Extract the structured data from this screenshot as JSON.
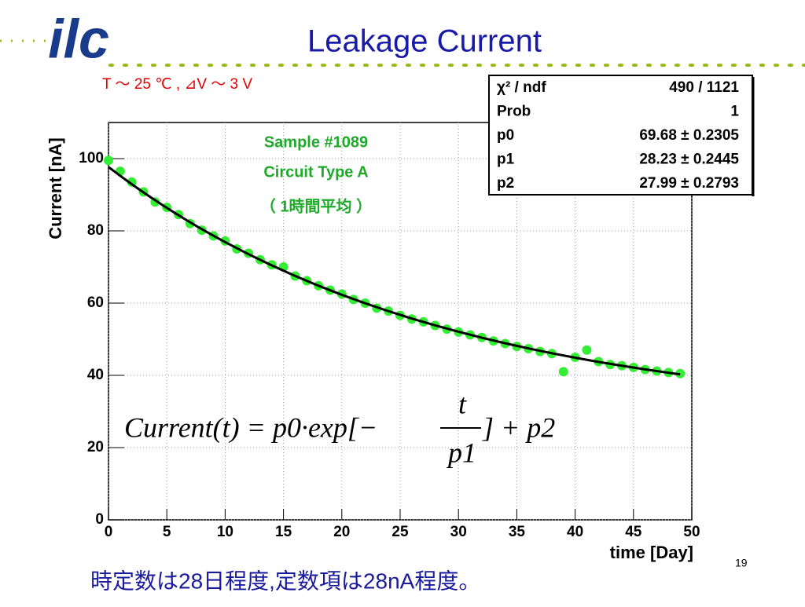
{
  "logo": "ilc",
  "title": "Leakage Current",
  "condition": "T ～ 25 ℃ , ⊿V ～ 3 V",
  "footer": "時定数は28日程度,定数項は28nA程度。",
  "page_number": "19",
  "chart_data": {
    "type": "scatter",
    "xlabel": "time [Day]",
    "ylabel": "Current [nA]",
    "xlim": [
      0,
      50
    ],
    "ylim": [
      0,
      110
    ],
    "xticks": [
      0,
      5,
      10,
      15,
      20,
      25,
      30,
      35,
      40,
      45,
      50
    ],
    "yticks": [
      0,
      20,
      40,
      60,
      80,
      100
    ],
    "grid": true,
    "annotations": [
      "Sample #1089",
      "Circuit Type A",
      "（ 1時間平均 ）"
    ],
    "formula": {
      "left": "Current(t) = p0·exp[−",
      "numerator": "t",
      "denominator": "p1",
      "right": "] + p2"
    },
    "stats": [
      [
        "χ² / ndf",
        "490 / 1121"
      ],
      [
        "Prob",
        "1"
      ],
      [
        "p0",
        "69.68 ± 0.2305"
      ],
      [
        "p1",
        "28.23 ± 0.2445"
      ],
      [
        "p2",
        "27.99 ± 0.2793"
      ]
    ],
    "series": [
      {
        "mode": "markers",
        "color": "#33ee33",
        "x": [
          0,
          1,
          2,
          3,
          4,
          5,
          6,
          7,
          8,
          9,
          10,
          11,
          12,
          13,
          14,
          15,
          16,
          17,
          18,
          19,
          20,
          21,
          22,
          23,
          24,
          25,
          26,
          27,
          28,
          29,
          30,
          31,
          32,
          33,
          34,
          35,
          36,
          37,
          38,
          39,
          40,
          41,
          42,
          43,
          44,
          45,
          46,
          47,
          48,
          49
        ],
        "values": [
          99.5,
          96.5,
          93.5,
          90.8,
          88.0,
          86.5,
          84.5,
          82.0,
          80.2,
          78.6,
          77.2,
          75.0,
          73.8,
          72.0,
          70.6,
          70.0,
          67.5,
          66.2,
          64.8,
          63.6,
          62.5,
          61.0,
          60.0,
          58.6,
          57.8,
          56.6,
          55.6,
          54.8,
          53.8,
          52.8,
          52.0,
          51.2,
          50.5,
          49.5,
          48.8,
          48.0,
          47.4,
          46.6,
          46.0,
          41.0,
          45.0,
          47.0,
          43.8,
          43.0,
          42.7,
          42.2,
          41.6,
          41.2,
          40.8,
          40.5
        ]
      },
      {
        "mode": "line",
        "color": "#000000",
        "x": [
          0,
          1,
          2,
          3,
          4,
          5,
          6,
          7,
          8,
          9,
          10,
          12,
          14,
          16,
          18,
          20,
          22,
          24,
          26,
          28,
          30,
          32,
          34,
          36,
          38,
          40,
          42,
          44,
          46,
          48,
          49
        ],
        "values": [
          97.67,
          95.25,
          92.91,
          90.65,
          88.47,
          86.36,
          84.33,
          82.37,
          80.47,
          78.65,
          76.88,
          73.54,
          70.43,
          67.52,
          64.82,
          62.3,
          59.96,
          57.77,
          55.73,
          53.84,
          52.07,
          50.42,
          48.89,
          47.46,
          46.13,
          44.89,
          43.73,
          42.66,
          41.65,
          40.72,
          40.28
        ]
      }
    ]
  }
}
